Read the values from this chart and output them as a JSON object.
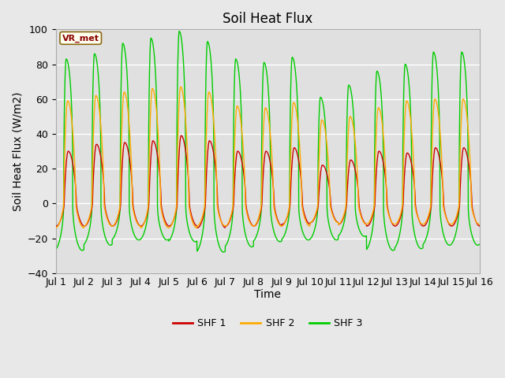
{
  "title": "Soil Heat Flux",
  "xlabel": "Time",
  "ylabel": "Soil Heat Flux (W/m2)",
  "ylim": [
    -40,
    100
  ],
  "yticks": [
    -40,
    -20,
    0,
    20,
    40,
    60,
    80,
    100
  ],
  "xtick_labels": [
    "Jul 1",
    "Jul 2",
    "Jul 3",
    "Jul 4",
    "Jul 5",
    "Jul 6",
    "Jul 7",
    "Jul 8",
    "Jul 9",
    "Jul 10",
    "Jul 11",
    "Jul 12",
    "Jul 13",
    "Jul 14",
    "Jul 15",
    "Jul 16"
  ],
  "shf1_color": "#cc0000",
  "shf2_color": "#ffaa00",
  "shf3_color": "#00cc00",
  "legend_label1": "SHF 1",
  "legend_label2": "SHF 2",
  "legend_label3": "SHF 3",
  "vr_met_label": "VR_met",
  "fig_bg_color": "#e8e8e8",
  "plot_bg_color": "#e0e0e0",
  "grid_color": "#ffffff",
  "title_fontsize": 12,
  "label_fontsize": 10,
  "tick_fontsize": 9,
  "shf1_day_amps": [
    30,
    34,
    35,
    36,
    39,
    36,
    30,
    30,
    32,
    22,
    25,
    30,
    29,
    32
  ],
  "shf1_night_amps": [
    13,
    13,
    13,
    13,
    13,
    14,
    13,
    13,
    12,
    11,
    12,
    13,
    13,
    13
  ],
  "shf2_day_amps": [
    59,
    62,
    64,
    66,
    67,
    64,
    56,
    55,
    58,
    48,
    50,
    55,
    59,
    60
  ],
  "shf2_night_amps": [
    14,
    13,
    13,
    14,
    14,
    13,
    13,
    13,
    13,
    11,
    12,
    12,
    12,
    12
  ],
  "shf3_day_amps": [
    83,
    86,
    92,
    95,
    99,
    93,
    83,
    81,
    84,
    61,
    68,
    76,
    80,
    87
  ],
  "shf3_night_amps": [
    27,
    24,
    21,
    21,
    22,
    28,
    25,
    22,
    21,
    21,
    19,
    27,
    26,
    24
  ]
}
